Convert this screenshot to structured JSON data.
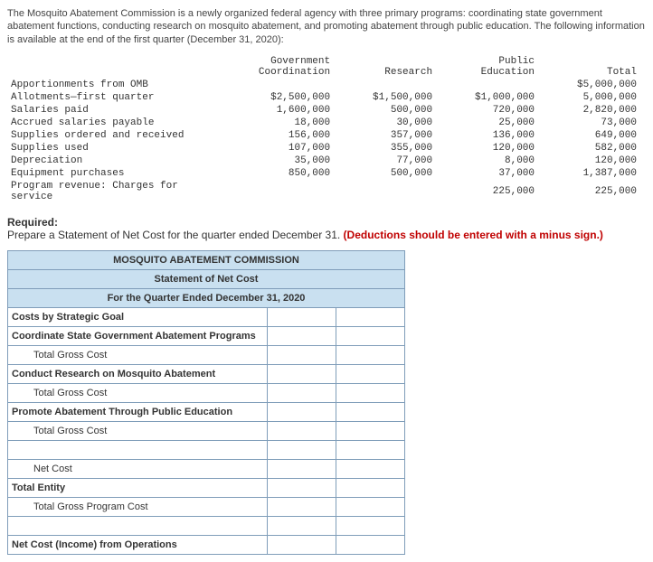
{
  "intro": "The Mosquito Abatement Commission is a newly organized federal agency with three primary programs: coordinating state government abatement functions, conducting research on mosquito abatement, and promoting abatement through public education. The following information is available at the end of the first quarter (December 31, 2020):",
  "table": {
    "columns": [
      "Government Coordination",
      "Research",
      "Public Education",
      "Total"
    ],
    "rows": [
      {
        "label": "Apportionments from OMB",
        "vals": [
          "",
          "",
          "",
          "$5,000,000"
        ]
      },
      {
        "label": "Allotments—first quarter",
        "vals": [
          "$2,500,000",
          "$1,500,000",
          "$1,000,000",
          "5,000,000"
        ]
      },
      {
        "label": "Salaries paid",
        "vals": [
          "1,600,000",
          "500,000",
          "720,000",
          "2,820,000"
        ]
      },
      {
        "label": "Accrued salaries payable",
        "vals": [
          "18,000",
          "30,000",
          "25,000",
          "73,000"
        ]
      },
      {
        "label": "Supplies ordered and received",
        "vals": [
          "156,000",
          "357,000",
          "136,000",
          "649,000"
        ]
      },
      {
        "label": "Supplies used",
        "vals": [
          "107,000",
          "355,000",
          "120,000",
          "582,000"
        ]
      },
      {
        "label": "Depreciation",
        "vals": [
          "35,000",
          "77,000",
          "8,000",
          "120,000"
        ]
      },
      {
        "label": "Equipment purchases",
        "vals": [
          "850,000",
          "500,000",
          "37,000",
          "1,387,000"
        ]
      },
      {
        "label": "Program revenue: Charges for service",
        "vals": [
          "",
          "",
          "225,000",
          "225,000"
        ]
      }
    ]
  },
  "required": {
    "label": "Required:",
    "text_prefix": "Prepare a Statement of Net Cost for the quarter ended December 31. ",
    "text_red": "(Deductions should be entered with a minus sign.)"
  },
  "stmt": {
    "h1": "MOSQUITO ABATEMENT COMMISSION",
    "h2": "Statement of Net Cost",
    "h3": "For the Quarter Ended December 31, 2020",
    "rows": [
      {
        "t": "Costs by Strategic Goal",
        "bold": true,
        "i": 0
      },
      {
        "t": "Coordinate State Government Abatement Programs",
        "bold": true,
        "i": 0
      },
      {
        "t": "Total Gross Cost",
        "bold": false,
        "i": 2
      },
      {
        "t": "Conduct Research on Mosquito Abatement",
        "bold": true,
        "i": 0
      },
      {
        "t": "Total Gross Cost",
        "bold": false,
        "i": 2
      },
      {
        "t": "Promote Abatement Through Public Education",
        "bold": true,
        "i": 0
      },
      {
        "t": "Total Gross Cost",
        "bold": false,
        "i": 2
      },
      {
        "t": "",
        "bold": false,
        "i": 0,
        "shadeC2": true
      },
      {
        "t": "Net Cost",
        "bold": false,
        "i": 2,
        "shadeC2": true
      },
      {
        "t": "Total Entity",
        "bold": true,
        "i": 0
      },
      {
        "t": "Total Gross Program Cost",
        "bold": false,
        "i": 2,
        "shadeC2": true
      },
      {
        "t": "",
        "bold": false,
        "i": 0,
        "shadeC2": true
      },
      {
        "t": "Net Cost (Income) from Operations",
        "bold": true,
        "i": 0,
        "shadeC2": true,
        "shadeC3": true
      }
    ]
  }
}
